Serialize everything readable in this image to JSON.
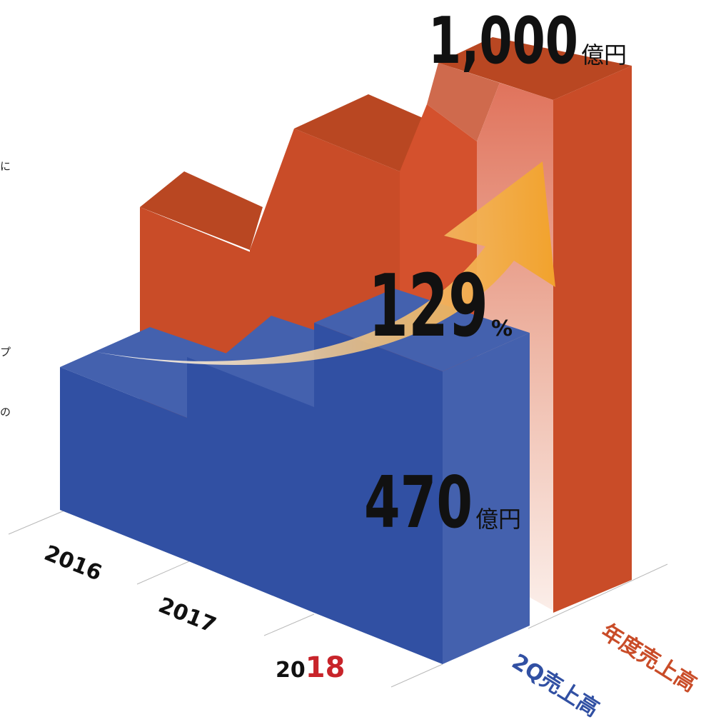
{
  "side_text": [
    "に",
    "プ",
    "の"
  ],
  "chart_data": {
    "type": "bar",
    "categories": [
      "2016",
      "2017",
      "2018"
    ],
    "series": [
      {
        "name": "2Q売上高",
        "values": [
          null,
          null,
          470
        ]
      },
      {
        "name": "年度売上高",
        "values": [
          null,
          null,
          1000
        ]
      }
    ],
    "callouts": {
      "annual": {
        "value": "1,000",
        "unit": "億円"
      },
      "q2": {
        "value": "470",
        "unit": "億円"
      },
      "growth": {
        "value": "129",
        "unit": "%"
      }
    },
    "colors": {
      "annual": "#c94c28",
      "annual_top": "#b94722",
      "q2": "#3150a3",
      "q2_light": "#4461ae",
      "highlight_year": "#c8242a",
      "arrow": "#f2a22c"
    }
  }
}
